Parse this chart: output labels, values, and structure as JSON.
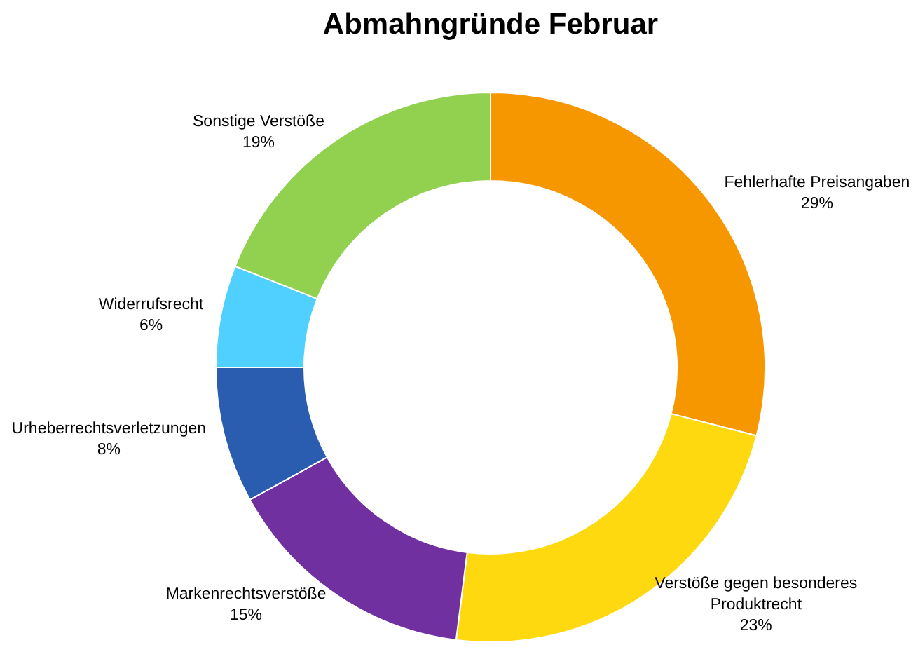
{
  "chart_data": {
    "type": "donut",
    "title": "Abmahngründe Februar",
    "categories": [
      "Fehlerhafte Preisangaben",
      "Verstöße gegen besonderes Produktrecht",
      "Markenrechtsverstöße",
      "Urheberrechtsverletzungen",
      "Widerrufsrecht",
      "Sonstige Verstöße"
    ],
    "values": [
      29,
      23,
      15,
      8,
      6,
      19
    ],
    "value_labels": [
      "29%",
      "23%",
      "15%",
      "8%",
      "6%",
      "19%"
    ],
    "colors": [
      "#f79700",
      "#fed90f",
      "#7030a0",
      "#2a5db0",
      "#4fd0ff",
      "#92d050"
    ],
    "legend": false
  }
}
